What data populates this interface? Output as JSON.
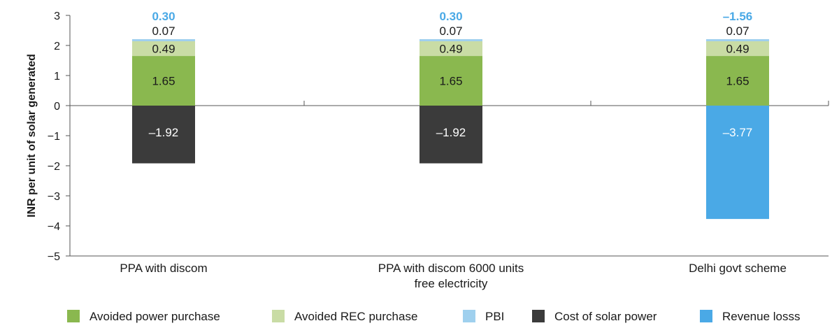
{
  "chart_data": {
    "type": "bar",
    "stacked": true,
    "ylabel": "INR per unit of solar generated",
    "ylim": [
      -5,
      3
    ],
    "yticks": [
      3,
      2,
      1,
      0,
      -1,
      -2,
      -3,
      -4,
      -5
    ],
    "ytick_labels": [
      "3",
      "2",
      "1",
      "0",
      "−1",
      "−2",
      "−3",
      "−4",
      "−5"
    ],
    "categories": [
      [
        "PPA with discom"
      ],
      [
        "PPA with discom 6000 units",
        "free electricity"
      ],
      [
        "Delhi govt scheme"
      ]
    ],
    "series": [
      {
        "name": "Avoided power purchase",
        "color": "#8ab84f",
        "label_color": "#1a1a1a",
        "values": [
          1.65,
          1.65,
          1.65
        ],
        "labels": [
          "1.65",
          "1.65",
          "1.65"
        ]
      },
      {
        "name": "Avoided REC purchase",
        "color": "#c9dca5",
        "label_color": "#1a1a1a",
        "values": [
          0.49,
          0.49,
          0.49
        ],
        "labels": [
          "0.49",
          "0.49",
          "0.49"
        ]
      },
      {
        "name": "PBI",
        "color": "#9fd0ee",
        "label_color": "#1a1a1a",
        "values": [
          0.07,
          0.07,
          0.07
        ],
        "labels": [
          "0.07",
          "0.07",
          "0.07"
        ]
      },
      {
        "name": "Cost of solar power",
        "color": "#3b3b3b",
        "label_color": "#ffffff",
        "values": [
          -1.92,
          -1.92,
          0
        ],
        "labels": [
          "–1.92",
          "–1.92",
          ""
        ]
      },
      {
        "name": "Revenue losss",
        "color": "#4aa9e6",
        "label_color": "#ffffff",
        "values": [
          0,
          0,
          -3.77
        ],
        "labels": [
          "",
          "",
          "–3.77"
        ]
      }
    ],
    "totals": [
      0.3,
      0.3,
      -1.56
    ],
    "total_labels": [
      "0.30",
      "0.30",
      "–1.56"
    ],
    "total_color": "#4aa9e6",
    "legend_position": "bottom",
    "grid": false
  }
}
